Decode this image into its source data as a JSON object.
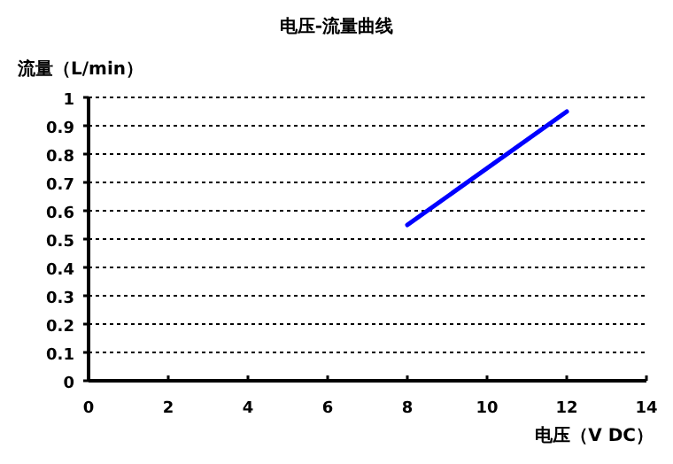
{
  "chart_data": {
    "type": "line",
    "title": "电压-流量曲线",
    "xlabel": "电压（V DC）",
    "ylabel": "流量（L/min）",
    "x": [
      8,
      12
    ],
    "series": [
      {
        "color": "#0000ff",
        "values": [
          0.55,
          0.95
        ]
      }
    ],
    "xlim": [
      0,
      14
    ],
    "ylim": [
      0,
      1
    ],
    "xticks": [
      0,
      2,
      4,
      6,
      8,
      10,
      12,
      14
    ],
    "yticks": [
      0,
      0.1,
      0.2,
      0.3,
      0.4,
      0.5,
      0.6,
      0.7,
      0.8,
      0.9,
      1
    ],
    "grid": "y",
    "marker": "none",
    "line_style": "solid"
  }
}
